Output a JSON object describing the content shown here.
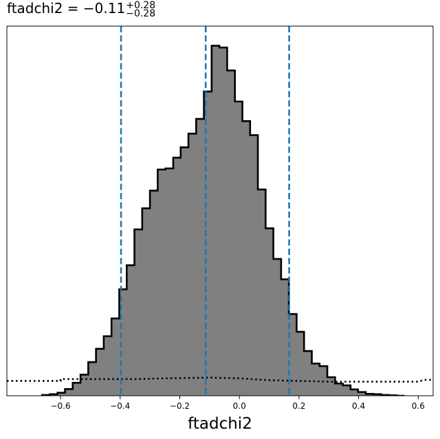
{
  "chart_data": {
    "type": "histogram",
    "title": {
      "param": "ftadchi2",
      "eq": " = ",
      "median": "−0.11",
      "upper": "+0.28",
      "lower": "−0.28"
    },
    "xlabel": "ftadchi2",
    "xlim": [
      -0.78,
      0.65
    ],
    "ylim": [
      0,
      1.0
    ],
    "xticks": [
      -0.6,
      -0.4,
      -0.2,
      0.0,
      0.2,
      0.4,
      0.6
    ],
    "xtick_labels": [
      "−0.6",
      "−0.4",
      "−0.2",
      "0.0",
      "0.2",
      "0.4",
      "0.6"
    ],
    "yticks_shown": false,
    "grid": false,
    "bin_edges": [
      -0.662,
      -0.636,
      -0.61,
      -0.585,
      -0.559,
      -0.533,
      -0.507,
      -0.481,
      -0.455,
      -0.429,
      -0.403,
      -0.378,
      -0.352,
      -0.326,
      -0.3,
      -0.274,
      -0.248,
      -0.222,
      -0.197,
      -0.171,
      -0.145,
      -0.119,
      -0.093,
      -0.067,
      -0.041,
      -0.015,
      0.01,
      0.036,
      0.062,
      0.088,
      0.114,
      0.14,
      0.166,
      0.192,
      0.217,
      0.243,
      0.269,
      0.295,
      0.321,
      0.347,
      0.373,
      0.398,
      0.424,
      0.45,
      0.476,
      0.502,
      0.528,
      0.554
    ],
    "counts": [
      0.002,
      0.004,
      0.008,
      0.018,
      0.035,
      0.057,
      0.091,
      0.127,
      0.161,
      0.209,
      0.288,
      0.353,
      0.45,
      0.507,
      0.555,
      0.612,
      0.615,
      0.644,
      0.672,
      0.709,
      0.749,
      0.823,
      0.947,
      0.942,
      0.88,
      0.796,
      0.743,
      0.705,
      0.558,
      0.453,
      0.37,
      0.315,
      0.221,
      0.173,
      0.121,
      0.087,
      0.08,
      0.05,
      0.033,
      0.028,
      0.017,
      0.01,
      0.005,
      0.004,
      0.002,
      0.001,
      0.0
    ],
    "fill_color": "#808080",
    "edge_color": "#000000",
    "quantile_lines": {
      "values": [
        -0.397,
        -0.113,
        0.167
      ],
      "color": "#1f77b4",
      "style": "dashed"
    },
    "prior_curve": {
      "style": "dotted",
      "color": "#000000",
      "x": [
        -0.78,
        -0.6,
        -0.6,
        -0.35,
        -0.25,
        -0.1,
        0.0,
        0.1,
        0.3,
        0.6,
        0.62,
        0.65
      ],
      "y": [
        0.04,
        0.04,
        0.045,
        0.045,
        0.047,
        0.049,
        0.047,
        0.042,
        0.038,
        0.038,
        0.043,
        0.043
      ]
    }
  }
}
